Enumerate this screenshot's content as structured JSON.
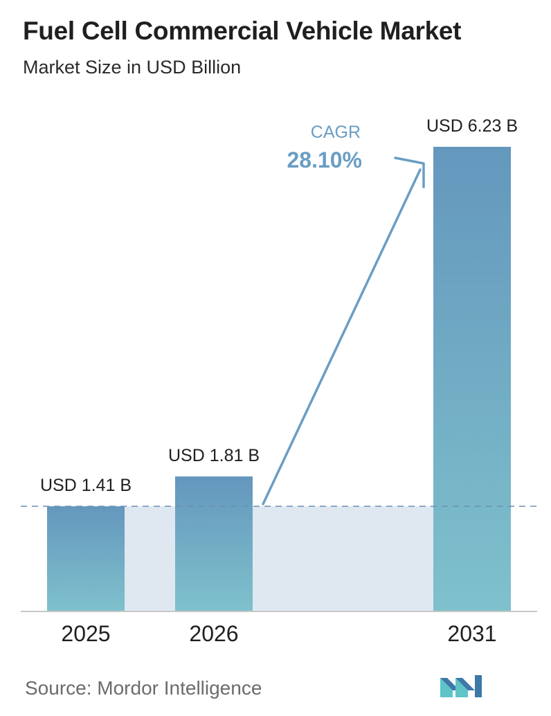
{
  "header": {
    "title": "Fuel Cell Commercial Vehicle Market",
    "subtitle": "Market Size in USD Billion"
  },
  "chart_data": {
    "type": "bar",
    "title": "Fuel Cell Commercial Vehicle Market",
    "subtitle": "Market Size in USD Billion",
    "categories": [
      "2025",
      "2026",
      "2031"
    ],
    "values": [
      1.41,
      1.81,
      6.23
    ],
    "value_labels": [
      "USD 1.41 B",
      "USD 1.81 B",
      "USD 6.23 B"
    ],
    "cagr_label": "CAGR",
    "cagr_value": "28.10%",
    "reference_line_value": 1.41,
    "grid": false,
    "legend": "none"
  },
  "footer": {
    "source": "Source:  Mordor Intelligence",
    "logo_icon": "mordor-intelligence-logo-icon"
  },
  "colors": {
    "bar_top": "#6497bd",
    "bar_bottom": "#7fc1cc",
    "arrow": "#6a9dc3",
    "band": "#dfe8f0",
    "cagr_text": "#6a9dc3",
    "logo_dark": "#3c78a8",
    "logo_light": "#5ec4c8"
  }
}
